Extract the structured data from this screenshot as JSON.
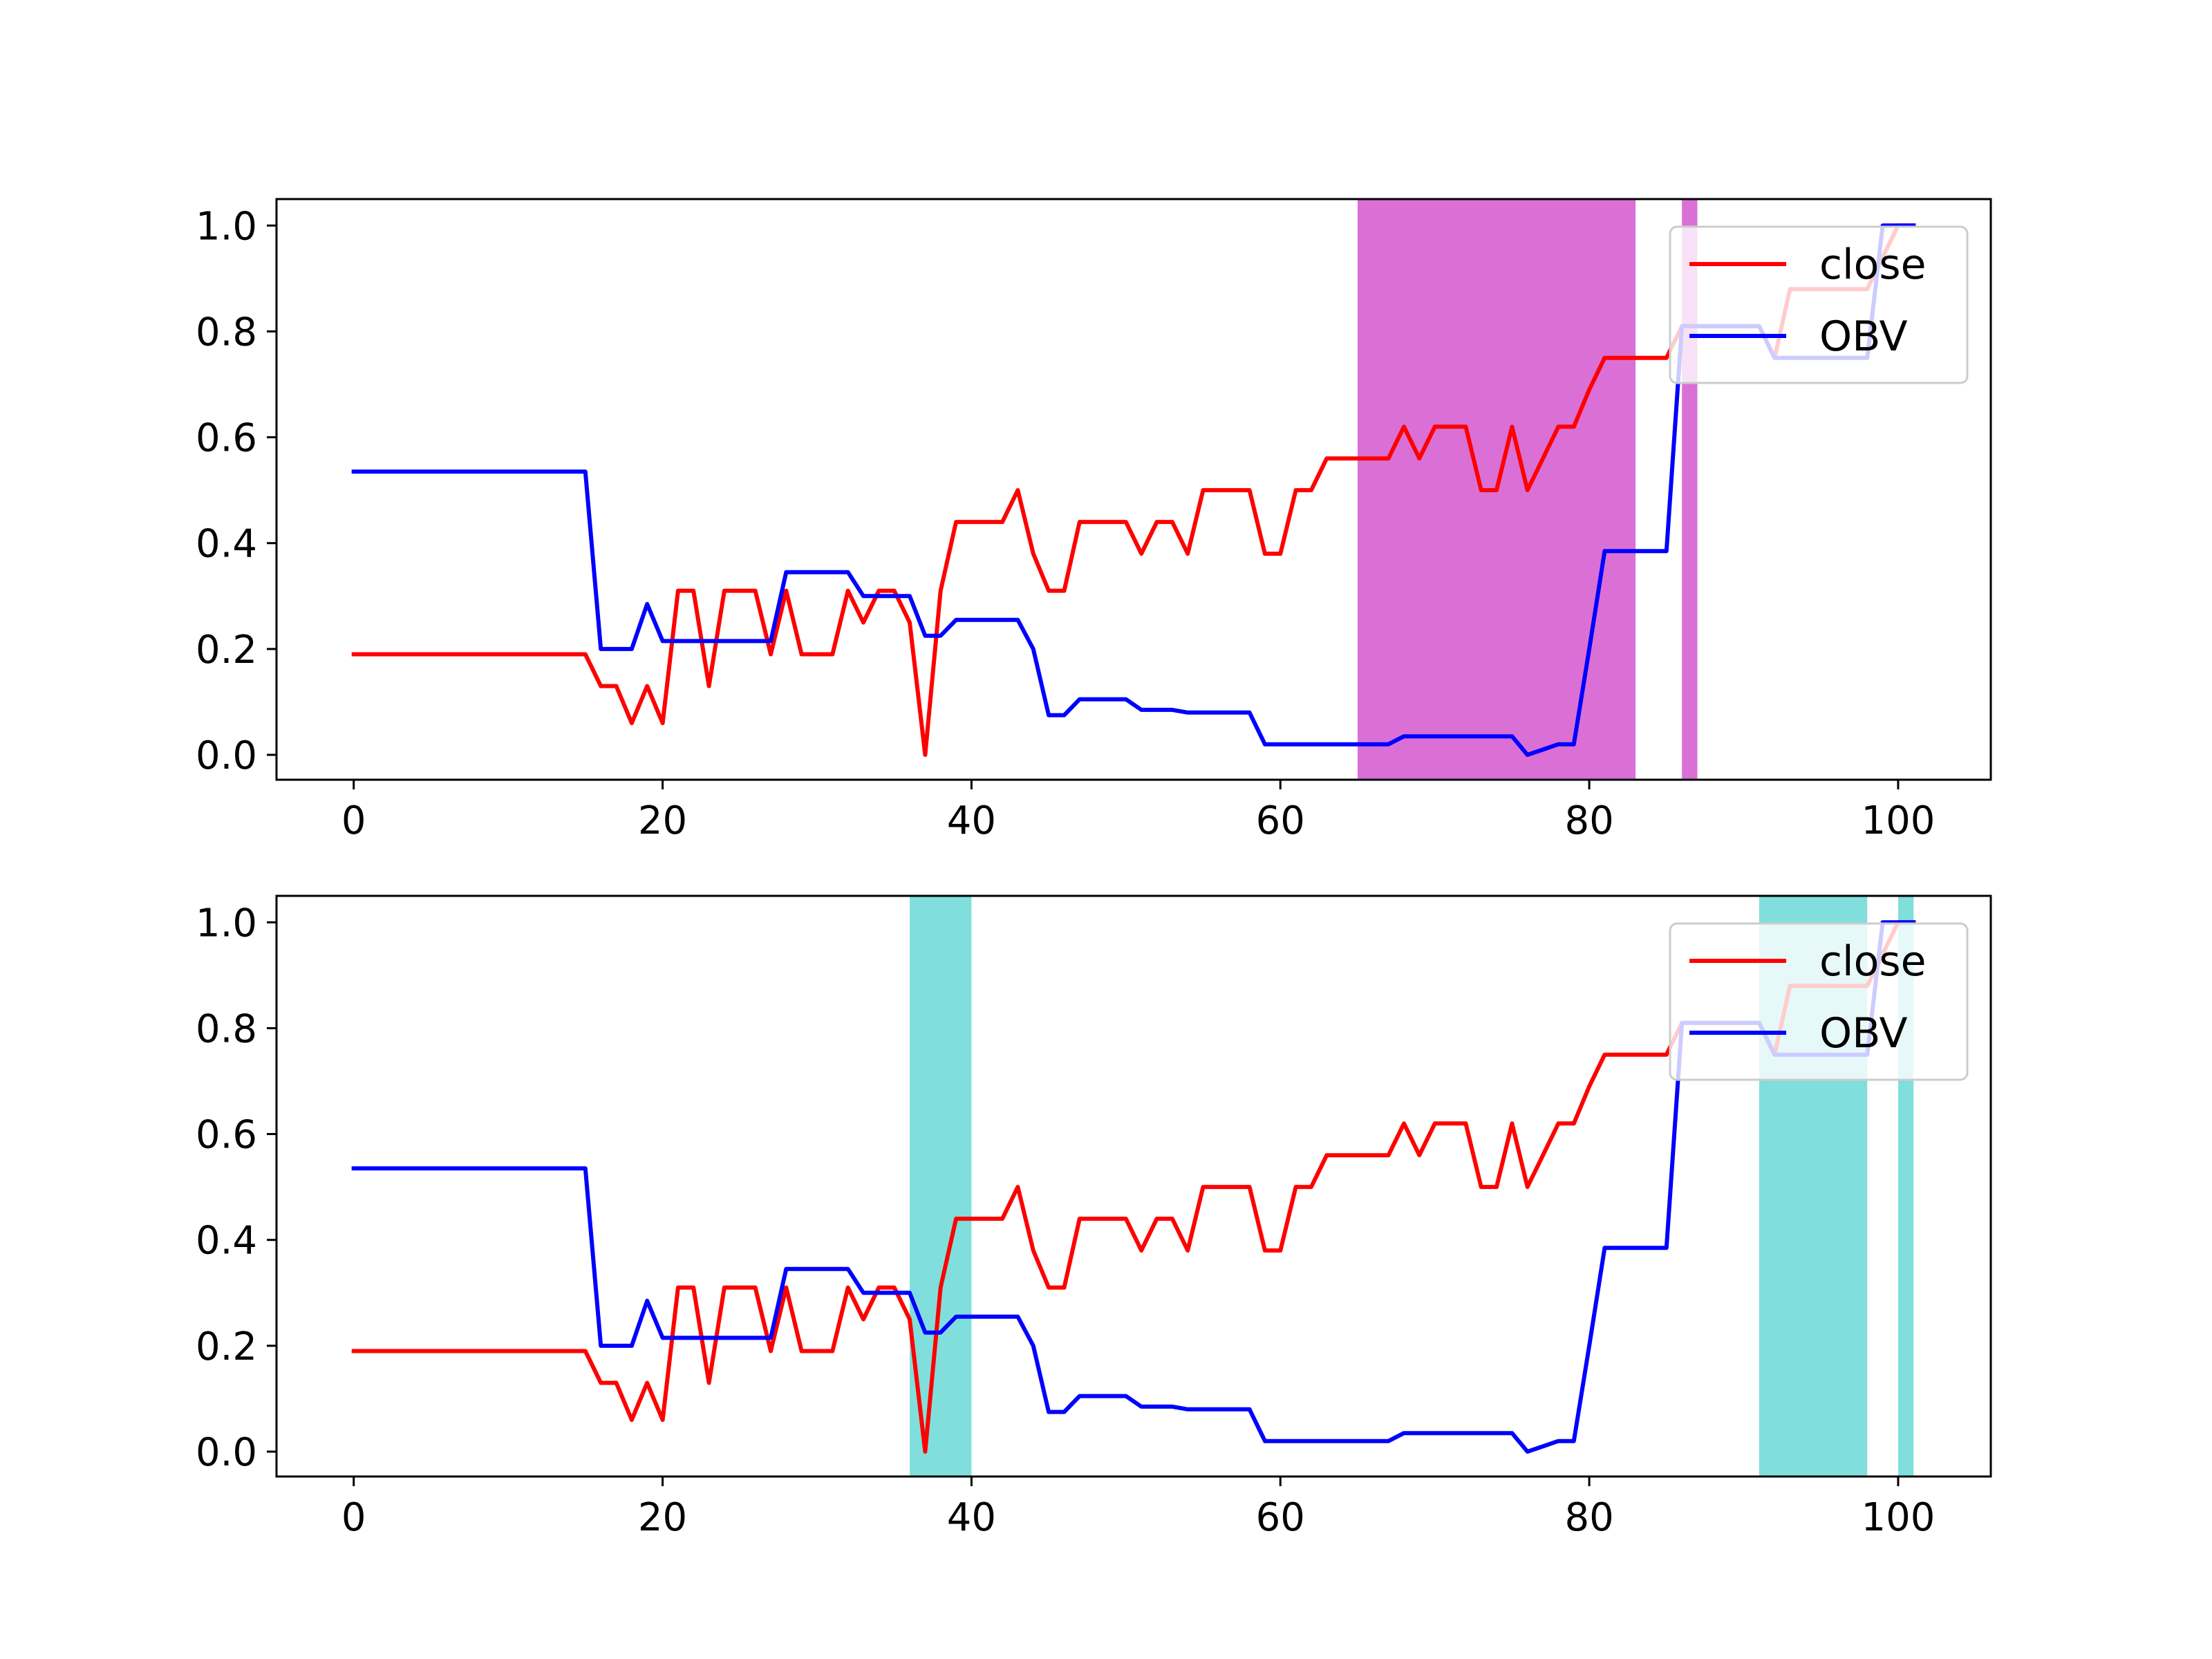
{
  "chart_data": [
    {
      "type": "line",
      "xlim": [
        -5,
        106
      ],
      "ylim": [
        -0.047,
        1.05
      ],
      "xticks": [
        0,
        20,
        40,
        60,
        80,
        100
      ],
      "yticks": [
        "0.0",
        "0.2",
        "0.4",
        "0.6",
        "0.8",
        "1.0"
      ],
      "legend_position": "top-right",
      "shaded_regions": [
        {
          "x_start": 65,
          "x_end": 83,
          "color": "#da70d6"
        },
        {
          "x_start": 86,
          "x_end": 87,
          "color": "#da70d6"
        }
      ],
      "series": [
        {
          "name": "close",
          "color": "#ff0000",
          "x": [
            0,
            15,
            16,
            17,
            18,
            19,
            20,
            21,
            22,
            23,
            24,
            25,
            26,
            27,
            28,
            29,
            30,
            31,
            32,
            33,
            34,
            35,
            36,
            37,
            38,
            39,
            40,
            41,
            42,
            43,
            44,
            45,
            46,
            47,
            48,
            49,
            50,
            51,
            52,
            53,
            54,
            55,
            56,
            57,
            58,
            59,
            60,
            61,
            62,
            63,
            64,
            65,
            66,
            67,
            68,
            69,
            70,
            71,
            72,
            73,
            74,
            75,
            76,
            77,
            78,
            79,
            80,
            81,
            82,
            83,
            84,
            85,
            86,
            87,
            88,
            89,
            90,
            91,
            92,
            93,
            94,
            95,
            96,
            97,
            98,
            99,
            100,
            101
          ],
          "y": [
            0.19,
            0.19,
            0.13,
            0.13,
            0.06,
            0.13,
            0.06,
            0.31,
            0.31,
            0.13,
            0.31,
            0.31,
            0.31,
            0.19,
            0.31,
            0.19,
            0.19,
            0.19,
            0.31,
            0.25,
            0.31,
            0.31,
            0.25,
            0.0,
            0.31,
            0.44,
            0.44,
            0.44,
            0.44,
            0.5,
            0.38,
            0.31,
            0.31,
            0.44,
            0.44,
            0.44,
            0.44,
            0.38,
            0.44,
            0.44,
            0.38,
            0.5,
            0.5,
            0.5,
            0.5,
            0.38,
            0.38,
            0.5,
            0.5,
            0.56,
            0.56,
            0.56,
            0.56,
            0.56,
            0.62,
            0.56,
            0.62,
            0.62,
            0.62,
            0.5,
            0.5,
            0.62,
            0.5,
            0.56,
            0.62,
            0.62,
            0.69,
            0.75,
            0.75,
            0.75,
            0.75,
            0.75,
            0.81,
            0.81,
            0.81,
            0.81,
            0.81,
            0.81,
            0.75,
            0.88,
            0.88,
            0.88,
            0.88,
            0.88,
            0.88,
            0.94,
            1.0,
            1.0
          ]
        },
        {
          "name": "OBV",
          "color": "#0000ff",
          "x": [
            0,
            15,
            16,
            17,
            18,
            19,
            20,
            21,
            22,
            23,
            24,
            25,
            26,
            27,
            28,
            29,
            30,
            31,
            32,
            33,
            34,
            35,
            36,
            37,
            38,
            39,
            40,
            41,
            42,
            43,
            44,
            45,
            46,
            47,
            48,
            49,
            50,
            51,
            52,
            53,
            54,
            55,
            56,
            57,
            58,
            59,
            60,
            61,
            62,
            63,
            64,
            65,
            66,
            67,
            68,
            69,
            70,
            71,
            72,
            73,
            74,
            75,
            76,
            77,
            78,
            79,
            80,
            81,
            82,
            83,
            84,
            85,
            86,
            87,
            88,
            89,
            90,
            91,
            92,
            93,
            94,
            95,
            96,
            97,
            98,
            99,
            100,
            101
          ],
          "y": [
            0.535,
            0.535,
            0.2,
            0.2,
            0.2,
            0.285,
            0.215,
            0.215,
            0.215,
            0.215,
            0.215,
            0.215,
            0.215,
            0.215,
            0.345,
            0.345,
            0.345,
            0.345,
            0.345,
            0.3,
            0.3,
            0.3,
            0.3,
            0.225,
            0.225,
            0.255,
            0.255,
            0.255,
            0.255,
            0.255,
            0.2,
            0.075,
            0.075,
            0.105,
            0.105,
            0.105,
            0.105,
            0.085,
            0.085,
            0.085,
            0.08,
            0.08,
            0.08,
            0.08,
            0.08,
            0.02,
            0.02,
            0.02,
            0.02,
            0.02,
            0.02,
            0.02,
            0.02,
            0.02,
            0.035,
            0.035,
            0.035,
            0.035,
            0.035,
            0.035,
            0.035,
            0.035,
            0.0,
            0.01,
            0.02,
            0.02,
            0.2,
            0.385,
            0.385,
            0.385,
            0.385,
            0.385,
            0.81,
            0.81,
            0.81,
            0.81,
            0.81,
            0.81,
            0.75,
            0.75,
            0.75,
            0.75,
            0.75,
            0.75,
            0.75,
            1.0,
            1.0,
            1.0
          ]
        }
      ]
    },
    {
      "type": "line",
      "xlim": [
        -5,
        106
      ],
      "ylim": [
        -0.047,
        1.05
      ],
      "xticks": [
        0,
        20,
        40,
        60,
        80,
        100
      ],
      "yticks": [
        "0.0",
        "0.2",
        "0.4",
        "0.6",
        "0.8",
        "1.0"
      ],
      "legend_position": "top-right",
      "shaded_regions": [
        {
          "x_start": 36,
          "x_end": 40,
          "color": "#80dfdc"
        },
        {
          "x_start": 91,
          "x_end": 98,
          "color": "#80dfdc"
        },
        {
          "x_start": 100,
          "x_end": 101,
          "color": "#80dfdc"
        }
      ],
      "series": [
        {
          "name": "close",
          "color": "#ff0000",
          "x": [
            0,
            15,
            16,
            17,
            18,
            19,
            20,
            21,
            22,
            23,
            24,
            25,
            26,
            27,
            28,
            29,
            30,
            31,
            32,
            33,
            34,
            35,
            36,
            37,
            38,
            39,
            40,
            41,
            42,
            43,
            44,
            45,
            46,
            47,
            48,
            49,
            50,
            51,
            52,
            53,
            54,
            55,
            56,
            57,
            58,
            59,
            60,
            61,
            62,
            63,
            64,
            65,
            66,
            67,
            68,
            69,
            70,
            71,
            72,
            73,
            74,
            75,
            76,
            77,
            78,
            79,
            80,
            81,
            82,
            83,
            84,
            85,
            86,
            87,
            88,
            89,
            90,
            91,
            92,
            93,
            94,
            95,
            96,
            97,
            98,
            99,
            100,
            101
          ],
          "y": [
            0.19,
            0.19,
            0.13,
            0.13,
            0.06,
            0.13,
            0.06,
            0.31,
            0.31,
            0.13,
            0.31,
            0.31,
            0.31,
            0.19,
            0.31,
            0.19,
            0.19,
            0.19,
            0.31,
            0.25,
            0.31,
            0.31,
            0.25,
            0.0,
            0.31,
            0.44,
            0.44,
            0.44,
            0.44,
            0.5,
            0.38,
            0.31,
            0.31,
            0.44,
            0.44,
            0.44,
            0.44,
            0.38,
            0.44,
            0.44,
            0.38,
            0.5,
            0.5,
            0.5,
            0.5,
            0.38,
            0.38,
            0.5,
            0.5,
            0.56,
            0.56,
            0.56,
            0.56,
            0.56,
            0.62,
            0.56,
            0.62,
            0.62,
            0.62,
            0.5,
            0.5,
            0.62,
            0.5,
            0.56,
            0.62,
            0.62,
            0.69,
            0.75,
            0.75,
            0.75,
            0.75,
            0.75,
            0.81,
            0.81,
            0.81,
            0.81,
            0.81,
            0.81,
            0.75,
            0.88,
            0.88,
            0.88,
            0.88,
            0.88,
            0.88,
            0.94,
            1.0,
            1.0
          ]
        },
        {
          "name": "OBV",
          "color": "#0000ff",
          "x": [
            0,
            15,
            16,
            17,
            18,
            19,
            20,
            21,
            22,
            23,
            24,
            25,
            26,
            27,
            28,
            29,
            30,
            31,
            32,
            33,
            34,
            35,
            36,
            37,
            38,
            39,
            40,
            41,
            42,
            43,
            44,
            45,
            46,
            47,
            48,
            49,
            50,
            51,
            52,
            53,
            54,
            55,
            56,
            57,
            58,
            59,
            60,
            61,
            62,
            63,
            64,
            65,
            66,
            67,
            68,
            69,
            70,
            71,
            72,
            73,
            74,
            75,
            76,
            77,
            78,
            79,
            80,
            81,
            82,
            83,
            84,
            85,
            86,
            87,
            88,
            89,
            90,
            91,
            92,
            93,
            94,
            95,
            96,
            97,
            98,
            99,
            100,
            101
          ],
          "y": [
            0.535,
            0.535,
            0.2,
            0.2,
            0.2,
            0.285,
            0.215,
            0.215,
            0.215,
            0.215,
            0.215,
            0.215,
            0.215,
            0.215,
            0.345,
            0.345,
            0.345,
            0.345,
            0.345,
            0.3,
            0.3,
            0.3,
            0.3,
            0.225,
            0.225,
            0.255,
            0.255,
            0.255,
            0.255,
            0.255,
            0.2,
            0.075,
            0.075,
            0.105,
            0.105,
            0.105,
            0.105,
            0.085,
            0.085,
            0.085,
            0.08,
            0.08,
            0.08,
            0.08,
            0.08,
            0.02,
            0.02,
            0.02,
            0.02,
            0.02,
            0.02,
            0.02,
            0.02,
            0.02,
            0.035,
            0.035,
            0.035,
            0.035,
            0.035,
            0.035,
            0.035,
            0.035,
            0.0,
            0.01,
            0.02,
            0.02,
            0.2,
            0.385,
            0.385,
            0.385,
            0.385,
            0.385,
            0.81,
            0.81,
            0.81,
            0.81,
            0.81,
            0.81,
            0.75,
            0.75,
            0.75,
            0.75,
            0.75,
            0.75,
            0.75,
            1.0,
            1.0,
            1.0
          ]
        }
      ]
    }
  ]
}
